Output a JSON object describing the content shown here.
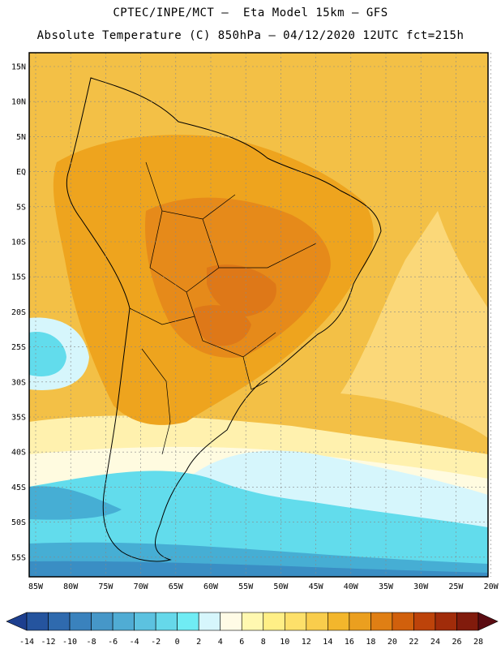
{
  "title": {
    "line1": "CPTEC/INPE/MCT –  Eta Model 15km – GFS",
    "line2": "Absolute Temperature (C) 850hPa – 04/12/2020 12UTC fct=215h"
  },
  "lat_labels": [
    "15N",
    "10N",
    "5N",
    "EQ",
    "5S",
    "10S",
    "15S",
    "20S",
    "25S",
    "30S",
    "35S",
    "40S",
    "45S",
    "50S",
    "55S"
  ],
  "lon_labels": [
    "85W",
    "80W",
    "75W",
    "70W",
    "65W",
    "60W",
    "55W",
    "50W",
    "45W",
    "40W",
    "35W",
    "30W",
    "25W",
    "20W"
  ],
  "colorbar": {
    "labels": [
      "-14",
      "-12",
      "-10",
      "-8",
      "-6",
      "-4",
      "-2",
      "0",
      "2",
      "4",
      "6",
      "8",
      "10",
      "12",
      "14",
      "16",
      "18",
      "20",
      "22",
      "24",
      "26",
      "28"
    ],
    "colors": [
      "#1d3f8f",
      "#25549e",
      "#2f6aae",
      "#3a82bd",
      "#4697c8",
      "#50acd4",
      "#5cc2e0",
      "#66d8ea",
      "#70ecf4",
      "#d6f6fc",
      "#fffbe6",
      "#fff8b0",
      "#ffef86",
      "#fde06a",
      "#f9cd4c",
      "#f3b62c",
      "#eb9f1f",
      "#e07f14",
      "#d1600c",
      "#bd430a",
      "#a12c0a",
      "#811b0c",
      "#5b0c12"
    ]
  },
  "field_colors": {
    "ocean_warm": "#f3c046",
    "tropics_land": "#eea41e",
    "interior_hot": "#e68a1a",
    "core_hottest": "#de7818",
    "mid_ocean": "#fbd879",
    "pale_band": "#fff1ae",
    "cream": "#fffbe0",
    "pale_blue": "#d6f6fc",
    "cyan": "#62dcec",
    "blue_deep": "#46aed4",
    "blue_deeper": "#3a8ec4"
  }
}
